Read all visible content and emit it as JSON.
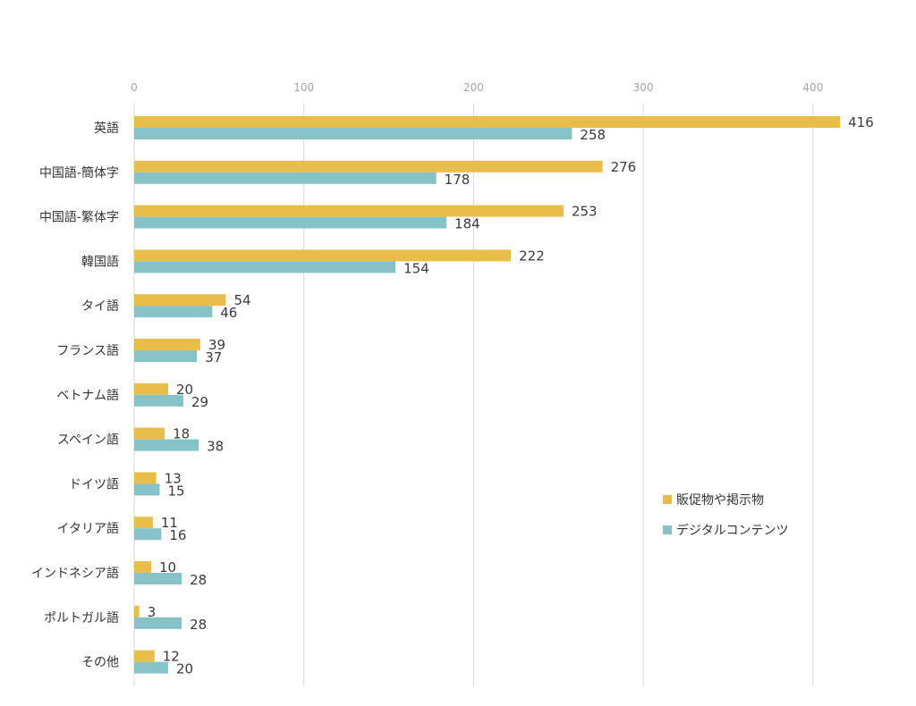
{
  "chart_data": {
    "type": "bar",
    "orientation": "horizontal",
    "categories": [
      "英語",
      "中国語-簡体字",
      "中国語-繁体字",
      "韓国語",
      "タイ語",
      "フランス語",
      "ベトナム語",
      "スペイン語",
      "ドイツ語",
      "イタリア語",
      "インドネシア語",
      "ポルトガル語",
      "その他"
    ],
    "series": [
      {
        "name": "販促物や掲示物",
        "values": [
          416,
          276,
          253,
          222,
          54,
          39,
          20,
          18,
          13,
          11,
          10,
          3,
          12
        ],
        "color": "#E8BD4A"
      },
      {
        "name": "デジタルコンテンツ",
        "values": [
          258,
          178,
          184,
          154,
          46,
          37,
          29,
          38,
          15,
          16,
          28,
          28,
          20
        ],
        "color": "#86C2C6"
      }
    ],
    "xlim": [
      0,
      440
    ],
    "xticks": [
      0,
      100,
      200,
      300,
      400
    ],
    "title": "",
    "xlabel": "",
    "ylabel": "",
    "grid": true,
    "legend_position": "right"
  }
}
